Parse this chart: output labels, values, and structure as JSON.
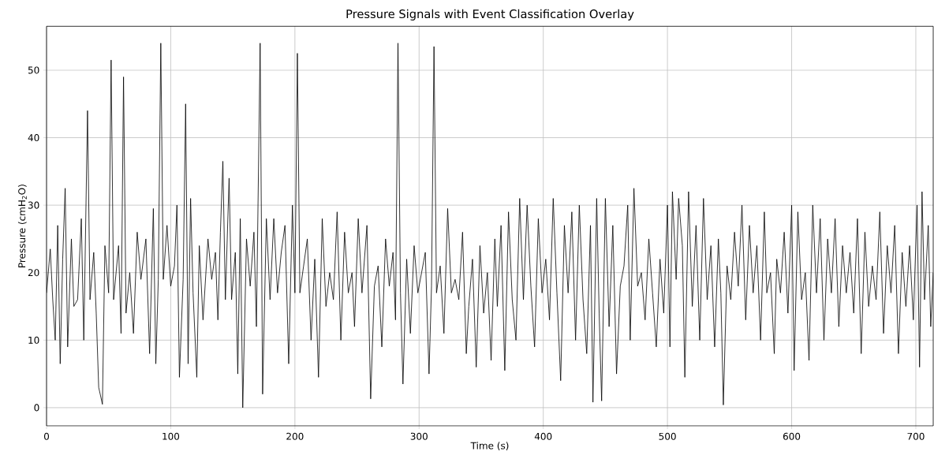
{
  "chart_data": {
    "type": "line",
    "title": "Pressure Signals with Event Classification Overlay",
    "xlabel": "Time (s)",
    "ylabel": "Pressure (cmH$_{2}$O)",
    "xlim": [
      0,
      714
    ],
    "ylim": [
      -2.7,
      56.5
    ],
    "xticks": [
      0,
      100,
      200,
      300,
      400,
      500,
      600,
      700
    ],
    "yticks": [
      0,
      10,
      20,
      30,
      40,
      50
    ],
    "grid": true,
    "series": [
      {
        "color": "#000000",
        "x": [
          0,
          3,
          5,
          7,
          9,
          11,
          13,
          15,
          17,
          20,
          22,
          25,
          28,
          30,
          33,
          35,
          38,
          40,
          42,
          45,
          47,
          50,
          52,
          54,
          58,
          60,
          62,
          64,
          67,
          70,
          73,
          76,
          80,
          83,
          86,
          88,
          90,
          92,
          94,
          97,
          100,
          103,
          105,
          107,
          110,
          112,
          114,
          116,
          118,
          121,
          123,
          126,
          130,
          133,
          136,
          138,
          140,
          142,
          144,
          147,
          149,
          152,
          154,
          156,
          158,
          161,
          164,
          167,
          169,
          172,
          174,
          177,
          180,
          183,
          186,
          189,
          192,
          195,
          198,
          200,
          202,
          204,
          207,
          210,
          213,
          216,
          219,
          222,
          225,
          228,
          231,
          234,
          237,
          240,
          243,
          246,
          248,
          251,
          254,
          258,
          261,
          264,
          267,
          270,
          273,
          276,
          279,
          281,
          283,
          285,
          287,
          290,
          293,
          296,
          299,
          302,
          305,
          308,
          310,
          312,
          314,
          317,
          320,
          323,
          326,
          329,
          332,
          335,
          338,
          340,
          343,
          346,
          349,
          352,
          355,
          358,
          361,
          363,
          366,
          369,
          372,
          375,
          378,
          381,
          384,
          387,
          390,
          393,
          396,
          399,
          402,
          405,
          408,
          411,
          414,
          417,
          420,
          423,
          426,
          429,
          432,
          435,
          438,
          440,
          443,
          445,
          447,
          450,
          453,
          456,
          459,
          462,
          465,
          468,
          470,
          473,
          476,
          479,
          482,
          485,
          488,
          491,
          494,
          497,
          500,
          502,
          504,
          507,
          509,
          512,
          514,
          517,
          520,
          523,
          526,
          529,
          532,
          535,
          538,
          541,
          543,
          545,
          548,
          551,
          554,
          557,
          560,
          563,
          566,
          569,
          572,
          575,
          578,
          580,
          583,
          586,
          588,
          591,
          594,
          597,
          600,
          602,
          605,
          608,
          611,
          614,
          617,
          620,
          623,
          626,
          629,
          632,
          635,
          638,
          641,
          644,
          647,
          650,
          653,
          656,
          659,
          662,
          665,
          668,
          671,
          674,
          677,
          680,
          683,
          686,
          689,
          692,
          695,
          698,
          701,
          703,
          705,
          707,
          710,
          712,
          714
        ],
        "values": [
          17,
          23.5,
          16,
          10,
          27,
          6.5,
          22,
          32.5,
          9,
          25,
          15,
          16,
          28,
          10,
          44,
          16,
          23,
          14,
          3,
          0.5,
          24,
          17,
          51.5,
          16,
          24,
          11,
          49,
          14,
          20,
          11,
          26,
          19,
          25,
          8,
          29.5,
          6.5,
          19,
          54,
          19,
          27,
          18,
          21,
          30,
          4.5,
          19,
          45,
          6.5,
          31,
          17,
          4.5,
          24,
          13,
          25,
          19,
          23,
          13,
          26,
          36.5,
          16,
          34,
          16,
          23,
          5,
          28,
          0,
          25,
          18,
          26,
          12,
          54,
          2,
          28,
          16,
          28,
          17,
          23,
          27,
          6.5,
          30,
          17,
          52.5,
          17,
          21,
          25,
          10,
          22,
          4.5,
          28,
          15,
          20,
          16,
          29,
          10,
          26,
          17,
          20,
          12,
          28,
          17,
          27,
          1.3,
          18,
          21,
          9,
          25,
          18,
          23,
          13,
          54,
          17,
          3.5,
          22,
          11,
          24,
          17,
          20,
          23,
          5,
          18,
          53.5,
          17,
          21,
          11,
          29.5,
          17,
          19,
          16,
          26,
          8,
          15,
          22,
          6,
          24,
          14,
          20,
          7,
          25,
          15,
          27,
          5.5,
          29,
          16,
          10,
          31,
          16,
          30,
          18,
          9,
          28,
          17,
          22,
          13,
          31,
          17,
          4,
          27,
          17,
          29,
          10,
          30,
          16,
          8,
          27,
          0.8,
          31,
          14,
          1,
          31,
          12,
          27,
          5,
          18,
          21,
          30,
          10,
          32.5,
          18,
          20,
          13,
          25,
          17,
          9,
          22,
          14,
          30,
          9,
          32,
          19,
          31,
          24,
          4.5,
          32,
          15,
          27,
          10,
          31,
          16,
          24,
          9,
          25,
          17,
          0.4,
          21,
          16,
          26,
          18,
          30,
          13,
          27,
          17,
          24,
          10,
          29,
          17,
          20,
          8,
          22,
          17,
          26,
          14,
          30,
          5.5,
          29,
          16,
          20,
          7,
          30,
          17,
          28,
          10,
          25,
          17,
          28,
          12,
          24,
          17,
          23,
          14,
          28,
          8,
          26,
          15,
          21,
          16,
          29,
          11,
          24,
          17,
          27,
          8,
          23,
          15,
          24,
          13,
          30,
          6,
          32,
          16,
          27,
          12,
          20
        ]
      }
    ]
  }
}
